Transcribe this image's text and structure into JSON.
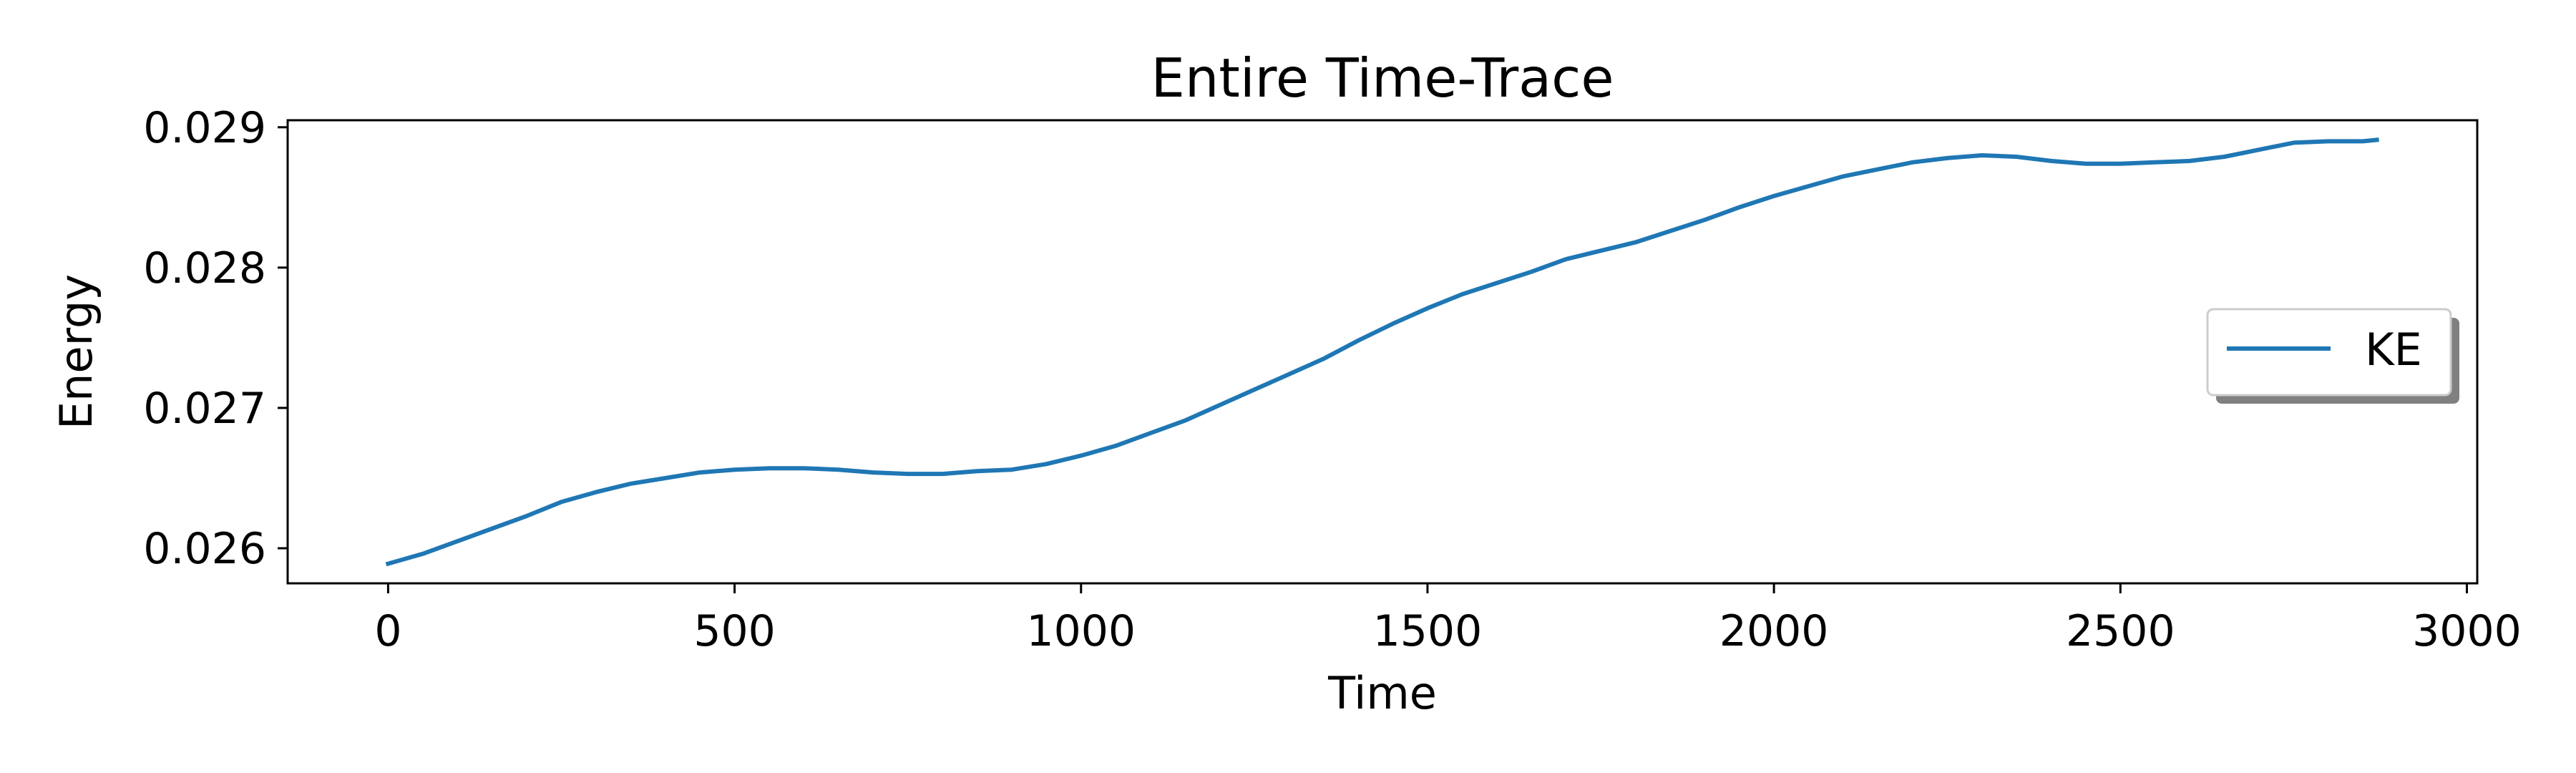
{
  "chart_data": {
    "type": "line",
    "title": "Entire Time-Trace",
    "xlabel": "Time",
    "ylabel": "Energy",
    "xlim": [
      -145,
      3015
    ],
    "ylim": [
      0.02575,
      0.02905
    ],
    "xticks": [
      0,
      500,
      1000,
      1500,
      2000,
      2500,
      3000
    ],
    "xtick_labels": [
      "0",
      "500",
      "1000",
      "1500",
      "2000",
      "2500",
      "3000"
    ],
    "yticks": [
      0.026,
      0.027,
      0.028,
      0.029
    ],
    "ytick_labels": [
      "0.026",
      "0.027",
      "0.028",
      "0.029"
    ],
    "grid": false,
    "legend": {
      "placement": "center-right",
      "shadow": true
    },
    "series": [
      {
        "name": "KE",
        "color": "#1f77b4",
        "x": [
          0,
          50,
          100,
          150,
          200,
          250,
          300,
          350,
          400,
          450,
          500,
          550,
          600,
          650,
          700,
          750,
          800,
          850,
          900,
          950,
          1000,
          1050,
          1100,
          1150,
          1200,
          1250,
          1300,
          1350,
          1400,
          1450,
          1500,
          1550,
          1600,
          1650,
          1700,
          1750,
          1800,
          1850,
          1900,
          1950,
          2000,
          2050,
          2100,
          2150,
          2200,
          2250,
          2300,
          2350,
          2400,
          2450,
          2500,
          2550,
          2600,
          2650,
          2700,
          2750,
          2800,
          2850,
          2870
        ],
        "values": [
          0.02589,
          0.02596,
          0.02605,
          0.02614,
          0.02623,
          0.02633,
          0.0264,
          0.02646,
          0.0265,
          0.02654,
          0.02656,
          0.02657,
          0.02657,
          0.02656,
          0.02654,
          0.02653,
          0.02653,
          0.02655,
          0.02656,
          0.0266,
          0.02666,
          0.02673,
          0.02682,
          0.02691,
          0.02702,
          0.02713,
          0.02724,
          0.02735,
          0.02748,
          0.0276,
          0.02771,
          0.02781,
          0.02789,
          0.02797,
          0.02806,
          0.02812,
          0.02818,
          0.02826,
          0.02834,
          0.02843,
          0.02851,
          0.02858,
          0.02865,
          0.0287,
          0.02875,
          0.02878,
          0.0288,
          0.02879,
          0.02876,
          0.02874,
          0.02874,
          0.02875,
          0.02876,
          0.02879,
          0.02884,
          0.02889,
          0.0289,
          0.0289,
          0.02891
        ]
      }
    ]
  }
}
